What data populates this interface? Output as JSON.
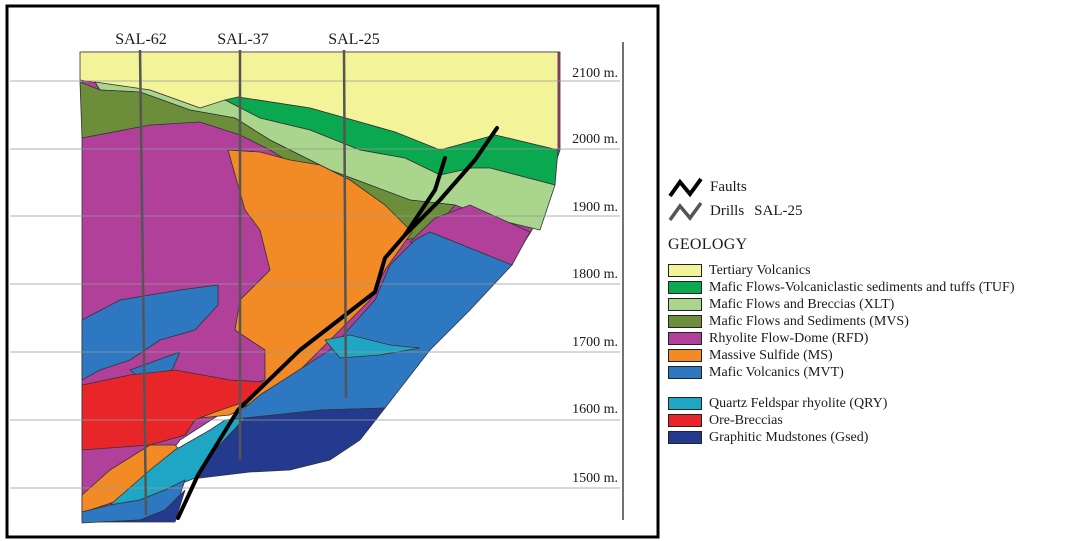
{
  "drills": {
    "names": [
      "SAL-62",
      "SAL-37",
      "SAL-25"
    ]
  },
  "elevations": [
    "2100 m.",
    "2000 m.",
    "1900 m.",
    "1800 m.",
    "1700 m.",
    "1600 m.",
    "1500 m."
  ],
  "legend": {
    "symbols": {
      "faults_label": "Faults",
      "drills_label": "Drills",
      "drills_example": "SAL-25"
    },
    "title": "GEOLOGY",
    "units": [
      {
        "label": "Tertiary Volcanics",
        "color": "#f3f39a"
      },
      {
        "label": "Mafic Flows-Volcaniclastic sediments and tuffs (TUF)",
        "color": "#0aa84f"
      },
      {
        "label": "Mafic Flows and Breccias  (XLT)",
        "color": "#a9d58c"
      },
      {
        "label": "Mafic Flows and Sediments (MVS)",
        "color": "#6c8d3a"
      },
      {
        "label": "Rhyolite Flow-Dome (RFD)",
        "color": "#b0409a"
      },
      {
        "label": "Massive Sulfide (MS)",
        "color": "#f28a25"
      },
      {
        "label": "Mafic Volcanics (MVT)",
        "color": "#2e78c2"
      }
    ],
    "units2": [
      {
        "label": "Quartz Feldspar rhyolite (QRY)",
        "color": "#1ea6c4"
      },
      {
        "label": "Ore-Breccias",
        "color": "#e8262a"
      },
      {
        "label": "Graphitic Mudstones (Gsed)",
        "color": "#243a8e"
      }
    ]
  }
}
